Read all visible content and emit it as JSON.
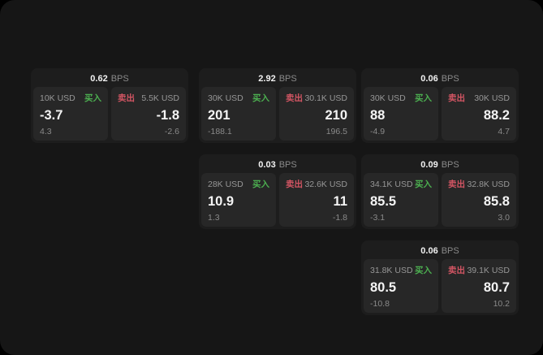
{
  "theme": {
    "outer_background": "#000000",
    "surface_background": "#161616",
    "card_background": "#1d1d1d",
    "panel_background": "#272727",
    "text_primary": "#f2f2f2",
    "text_secondary": "#8a8a8a",
    "buy_color": "#4caf50",
    "sell_color": "#d25563"
  },
  "cards": [
    {
      "bps": "0.62",
      "unit": "BPS",
      "buy": {
        "amount": "10K USD",
        "side": "买入",
        "price": "-3.7",
        "sub": "4.3"
      },
      "sell": {
        "side": "卖出",
        "amount": "5.5K USD",
        "price": "-1.8",
        "sub": "-2.6"
      }
    },
    {
      "bps": "2.92",
      "unit": "BPS",
      "buy": {
        "amount": "30K USD",
        "side": "买入",
        "price": "201",
        "sub": "-188.1"
      },
      "sell": {
        "side": "卖出",
        "amount": "30.1K USD",
        "price": "210",
        "sub": "196.5"
      }
    },
    {
      "bps": "0.06",
      "unit": "BPS",
      "buy": {
        "amount": "30K USD",
        "side": "买入",
        "price": "88",
        "sub": "-4.9"
      },
      "sell": {
        "side": "卖出",
        "amount": "30K USD",
        "price": "88.2",
        "sub": "4.7"
      }
    },
    {
      "bps": "0.03",
      "unit": "BPS",
      "buy": {
        "amount": "28K USD",
        "side": "买入",
        "price": "10.9",
        "sub": "1.3"
      },
      "sell": {
        "side": "卖出",
        "amount": "32.6K USD",
        "price": "11",
        "sub": "-1.8"
      }
    },
    {
      "bps": "0.09",
      "unit": "BPS",
      "buy": {
        "amount": "34.1K USD",
        "side": "买入",
        "price": "85.5",
        "sub": "-3.1"
      },
      "sell": {
        "side": "卖出",
        "amount": "32.8K USD",
        "price": "85.8",
        "sub": "3.0"
      }
    },
    {
      "bps": "0.06",
      "unit": "BPS",
      "buy": {
        "amount": "31.8K USD",
        "side": "买入",
        "price": "80.5",
        "sub": "-10.8"
      },
      "sell": {
        "side": "卖出",
        "amount": "39.1K USD",
        "price": "80.7",
        "sub": "10.2"
      }
    }
  ]
}
